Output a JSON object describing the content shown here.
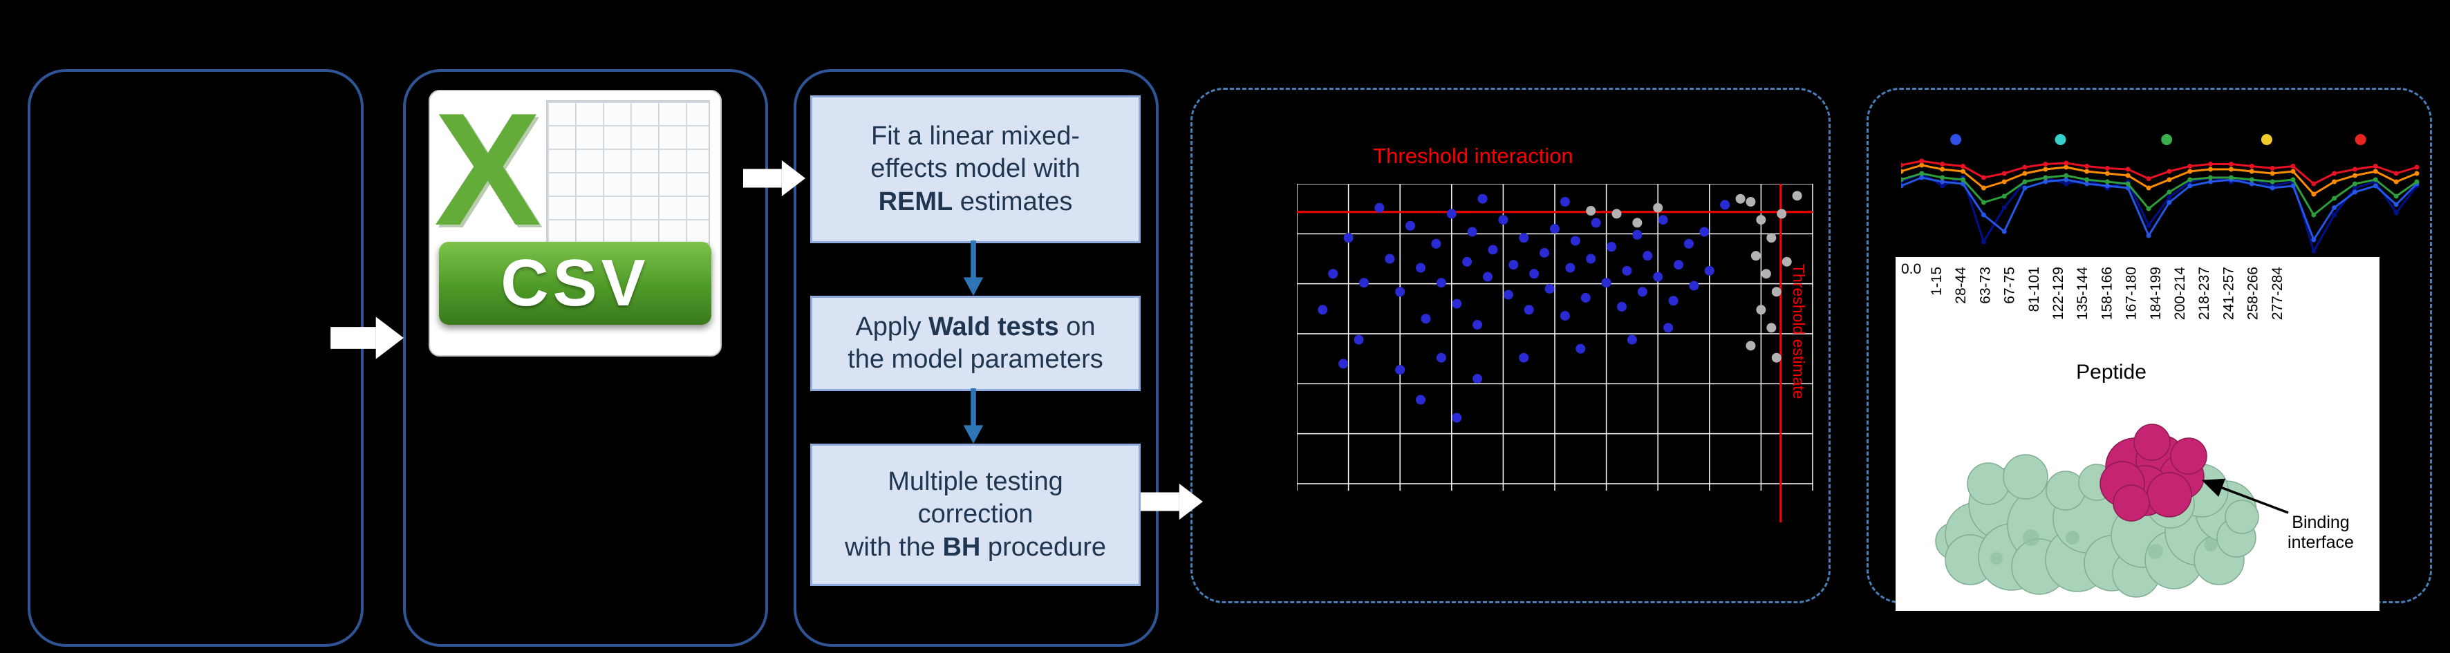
{
  "csv": {
    "label": "CSV"
  },
  "pipeline": {
    "steps": [
      {
        "lines": [
          [
            {
              "t": "Fit a linear mixed-"
            }
          ],
          [
            {
              "t": "effects model with"
            }
          ],
          [
            {
              "t": "REML",
              "b": true
            },
            {
              "t": " estimates"
            }
          ]
        ]
      },
      {
        "lines": [
          [
            {
              "t": "Apply "
            },
            {
              "t": "Wald tests",
              "b": true
            },
            {
              "t": " on"
            }
          ],
          [
            {
              "t": "the model parameters"
            }
          ]
        ]
      },
      {
        "lines": [
          [
            {
              "t": "Multiple testing"
            }
          ],
          [
            {
              "t": "correction"
            }
          ],
          [
            {
              "t": "with the "
            },
            {
              "t": "BH",
              "b": true
            },
            {
              "t": " procedure"
            }
          ]
        ]
      }
    ]
  },
  "chart_data": [
    {
      "type": "scatter",
      "title": "Threshold interaction",
      "threshold_x_label": "Threshold estimate",
      "grid": {
        "cols": 10,
        "rows": 6
      },
      "threshold_color": "#FF0000",
      "threshold_x_frac": 0.938,
      "threshold_y_frac": 0.094,
      "blue_color": "#2B2BD6",
      "gray_color": "#B3B3B3",
      "points_blue": [
        [
          0.05,
          0.42
        ],
        [
          0.07,
          0.3
        ],
        [
          0.09,
          0.6
        ],
        [
          0.1,
          0.18
        ],
        [
          0.12,
          0.52
        ],
        [
          0.13,
          0.33
        ],
        [
          0.16,
          0.08
        ],
        [
          0.18,
          0.25
        ],
        [
          0.2,
          0.36
        ],
        [
          0.2,
          0.62
        ],
        [
          0.22,
          0.14
        ],
        [
          0.24,
          0.28
        ],
        [
          0.24,
          0.72
        ],
        [
          0.25,
          0.45
        ],
        [
          0.27,
          0.2
        ],
        [
          0.28,
          0.33
        ],
        [
          0.28,
          0.58
        ],
        [
          0.3,
          0.1
        ],
        [
          0.31,
          0.4
        ],
        [
          0.31,
          0.78
        ],
        [
          0.33,
          0.26
        ],
        [
          0.34,
          0.16
        ],
        [
          0.35,
          0.47
        ],
        [
          0.35,
          0.65
        ],
        [
          0.36,
          0.05
        ],
        [
          0.37,
          0.31
        ],
        [
          0.38,
          0.22
        ],
        [
          0.4,
          0.12
        ],
        [
          0.41,
          0.37
        ],
        [
          0.42,
          0.27
        ],
        [
          0.44,
          0.18
        ],
        [
          0.44,
          0.58
        ],
        [
          0.45,
          0.42
        ],
        [
          0.46,
          0.3
        ],
        [
          0.48,
          0.23
        ],
        [
          0.49,
          0.35
        ],
        [
          0.5,
          0.15
        ],
        [
          0.52,
          0.06
        ],
        [
          0.52,
          0.44
        ],
        [
          0.53,
          0.28
        ],
        [
          0.54,
          0.19
        ],
        [
          0.55,
          0.55
        ],
        [
          0.56,
          0.38
        ],
        [
          0.57,
          0.25
        ],
        [
          0.58,
          0.13
        ],
        [
          0.6,
          0.33
        ],
        [
          0.61,
          0.21
        ],
        [
          0.63,
          0.41
        ],
        [
          0.64,
          0.29
        ],
        [
          0.65,
          0.52
        ],
        [
          0.66,
          0.17
        ],
        [
          0.67,
          0.36
        ],
        [
          0.68,
          0.24
        ],
        [
          0.7,
          0.31
        ],
        [
          0.71,
          0.12
        ],
        [
          0.72,
          0.48
        ],
        [
          0.73,
          0.39
        ],
        [
          0.74,
          0.27
        ],
        [
          0.76,
          0.2
        ],
        [
          0.77,
          0.34
        ],
        [
          0.79,
          0.16
        ],
        [
          0.8,
          0.29
        ],
        [
          0.83,
          0.07
        ]
      ],
      "points_gray": [
        [
          0.57,
          0.09
        ],
        [
          0.62,
          0.1
        ],
        [
          0.66,
          0.13
        ],
        [
          0.7,
          0.08
        ],
        [
          0.86,
          0.05
        ],
        [
          0.88,
          0.06
        ],
        [
          0.88,
          0.54
        ],
        [
          0.89,
          0.24
        ],
        [
          0.9,
          0.12
        ],
        [
          0.9,
          0.42
        ],
        [
          0.91,
          0.3
        ],
        [
          0.92,
          0.18
        ],
        [
          0.92,
          0.48
        ],
        [
          0.93,
          0.36
        ],
        [
          0.93,
          0.58
        ],
        [
          0.94,
          0.1
        ],
        [
          0.95,
          0.26
        ],
        [
          0.97,
          0.04
        ]
      ]
    },
    {
      "type": "line",
      "legend_dots": [
        {
          "x": 0.106,
          "color": "#2E50E8"
        },
        {
          "x": 0.309,
          "color": "#35D0C8"
        },
        {
          "x": 0.515,
          "color": "#3AAE4C"
        },
        {
          "x": 0.709,
          "color": "#F2CC2A"
        },
        {
          "x": 0.891,
          "color": "#E8251F"
        }
      ],
      "series": [
        {
          "color": "#00108B",
          "values": [
            0.3,
            0.22,
            0.34,
            0.26,
            0.88,
            0.55,
            0.3,
            0.26,
            0.32,
            0.28,
            0.36,
            0.3,
            0.72,
            0.45,
            0.3,
            0.26,
            0.3,
            0.28,
            0.34,
            0.3,
            0.97,
            0.62,
            0.36,
            0.3,
            0.6,
            0.34
          ]
        },
        {
          "color": "#2456E8",
          "values": [
            0.34,
            0.26,
            0.3,
            0.32,
            0.62,
            0.78,
            0.36,
            0.3,
            0.28,
            0.32,
            0.34,
            0.36,
            0.82,
            0.5,
            0.34,
            0.3,
            0.28,
            0.32,
            0.36,
            0.34,
            0.86,
            0.55,
            0.4,
            0.34,
            0.52,
            0.32
          ]
        },
        {
          "color": "#2E9E3C",
          "values": [
            0.28,
            0.22,
            0.26,
            0.28,
            0.5,
            0.44,
            0.3,
            0.26,
            0.24,
            0.28,
            0.3,
            0.32,
            0.56,
            0.4,
            0.28,
            0.26,
            0.26,
            0.28,
            0.3,
            0.28,
            0.62,
            0.46,
            0.32,
            0.28,
            0.44,
            0.3
          ]
        },
        {
          "color": "#FF8C00",
          "values": [
            0.2,
            0.14,
            0.18,
            0.2,
            0.36,
            0.3,
            0.22,
            0.18,
            0.16,
            0.2,
            0.22,
            0.24,
            0.36,
            0.28,
            0.2,
            0.18,
            0.18,
            0.2,
            0.22,
            0.2,
            0.42,
            0.3,
            0.24,
            0.2,
            0.3,
            0.22
          ]
        },
        {
          "color": "#E81123",
          "values": [
            0.14,
            0.1,
            0.13,
            0.15,
            0.26,
            0.22,
            0.16,
            0.13,
            0.12,
            0.15,
            0.17,
            0.18,
            0.27,
            0.2,
            0.15,
            0.13,
            0.13,
            0.15,
            0.17,
            0.15,
            0.32,
            0.22,
            0.18,
            0.15,
            0.22,
            0.16
          ]
        }
      ]
    }
  ],
  "peptide_axis": {
    "tick": "0.0",
    "labels": [
      "1-15",
      "28-44",
      "63-73",
      "67-75",
      "81-101",
      "122-129",
      "135-144",
      "158-166",
      "167-180",
      "184-199",
      "200-214",
      "218-237",
      "241-257",
      "258-266",
      "277-284"
    ],
    "axis_label": "Peptide"
  },
  "binding": {
    "label": "Binding interface"
  }
}
